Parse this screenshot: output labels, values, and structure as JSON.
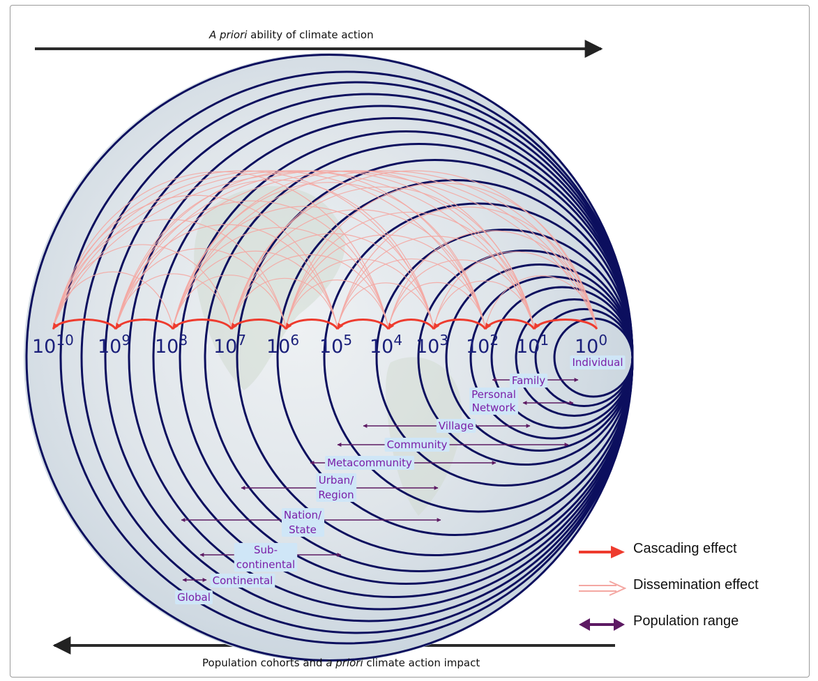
{
  "top_arrow": {
    "text_italic": "A priori",
    "text_rest": " ability of climate action"
  },
  "bottom_arrow": {
    "text_a": "Population cohorts and ",
    "text_italic": "a priori",
    "text_b": " climate action impact"
  },
  "scale_labels": [
    {
      "base": "10",
      "exp": "10"
    },
    {
      "base": "10",
      "exp": "9"
    },
    {
      "base": "10",
      "exp": "8"
    },
    {
      "base": "10",
      "exp": "7"
    },
    {
      "base": "10",
      "exp": "6"
    },
    {
      "base": "10",
      "exp": "5"
    },
    {
      "base": "10",
      "exp": "4"
    },
    {
      "base": "10",
      "exp": "3"
    },
    {
      "base": "10",
      "exp": "2"
    },
    {
      "base": "10",
      "exp": "1"
    },
    {
      "base": "10",
      "exp": "0"
    }
  ],
  "cohorts": [
    {
      "label": [
        "Individual"
      ]
    },
    {
      "label": [
        "Family"
      ]
    },
    {
      "label": [
        "Personal",
        "Network"
      ]
    },
    {
      "label": [
        "Village"
      ]
    },
    {
      "label": [
        "Community"
      ]
    },
    {
      "label": [
        "Metacommunity"
      ]
    },
    {
      "label": [
        "Urban/",
        "Region"
      ]
    },
    {
      "label": [
        "Nation/",
        "State"
      ]
    },
    {
      "label": [
        "Sub-",
        "continental"
      ]
    },
    {
      "label": [
        "Continental"
      ]
    },
    {
      "label": [
        "Global"
      ]
    }
  ],
  "legend": {
    "cascading": "Cascading effect",
    "dissemination": "Dissemination effect",
    "population": "Population range"
  },
  "colors": {
    "circle": "#0c0f5e",
    "cascading": "#ee3b2e",
    "dissemination": "#f4a7a2",
    "population": "#5d1a63",
    "label_text": "#7a1fa8",
    "label_bg": "#cfe6f7",
    "scale_text": "#1a1f7a",
    "globe_tint": "#dde4ec"
  }
}
